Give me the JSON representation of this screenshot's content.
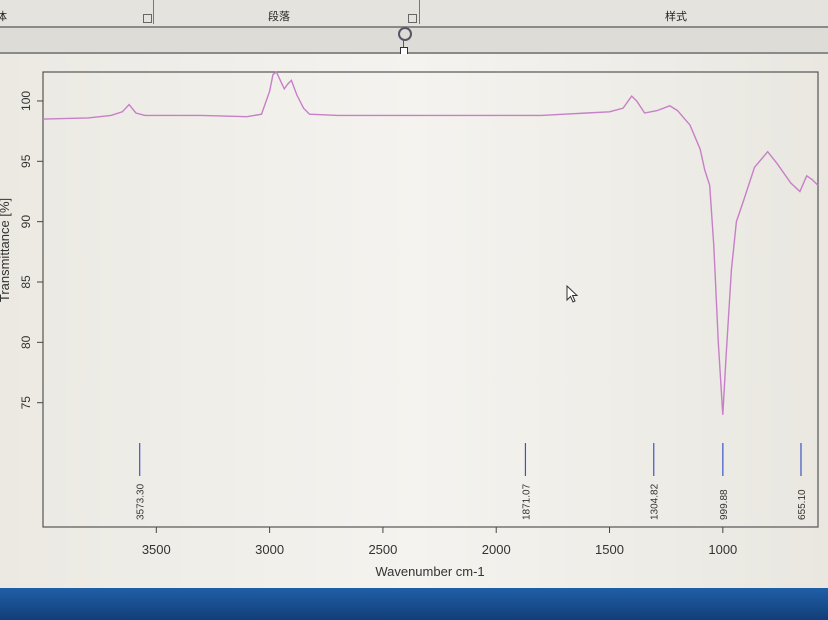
{
  "ribbon": {
    "groups": [
      {
        "label": "体"
      },
      {
        "label": "段落"
      },
      {
        "label": "样式"
      }
    ]
  },
  "chart_data": {
    "type": "line",
    "title": "",
    "xlabel": "Wavenumber cm-1",
    "ylabel": "Transmittance [%]",
    "xlim": [
      4000,
      580
    ],
    "ylim": [
      64.7,
      102.4
    ],
    "x_reversed": true,
    "grid": false,
    "x_ticks": [
      3500,
      3000,
      2500,
      2000,
      1500,
      1000
    ],
    "y_ticks": [
      75,
      80,
      85,
      90,
      95,
      100
    ],
    "line_color": "#c77fc7",
    "marker_color": "#3d55c4",
    "series": [
      {
        "x": [
          4000,
          3800,
          3700,
          3650,
          3620,
          3590,
          3550,
          3300,
          3100,
          3036,
          3000,
          2985,
          2970,
          2950,
          2935,
          2920,
          2904,
          2880,
          2850,
          2824,
          2700,
          2400,
          2000,
          1800,
          1700,
          1600,
          1500,
          1440,
          1402,
          1380,
          1345,
          1290,
          1234,
          1200,
          1145,
          1100,
          1080,
          1058,
          1040,
          1020,
          1000,
          985,
          962,
          940,
          904,
          860,
          802,
          760,
          700,
          660,
          630,
          607,
          580
        ],
        "y": [
          98.5,
          98.6,
          98.8,
          99.1,
          99.7,
          99.0,
          98.8,
          98.8,
          98.7,
          98.9,
          100.8,
          102.2,
          102.4,
          101.6,
          101.0,
          101.4,
          101.7,
          100.5,
          99.4,
          98.9,
          98.8,
          98.8,
          98.8,
          98.8,
          98.9,
          99.0,
          99.1,
          99.4,
          100.4,
          100.0,
          99.0,
          99.2,
          99.6,
          99.2,
          98.0,
          96.0,
          94.3,
          93.0,
          88.0,
          80.0,
          74.0,
          79.0,
          86.0,
          90.0,
          92.0,
          94.5,
          95.8,
          94.8,
          93.2,
          92.5,
          93.8,
          93.5,
          93.0
        ]
      }
    ],
    "peak_markers": [
      {
        "x": 3573.3,
        "label": "3573.30"
      },
      {
        "x": 1871.07,
        "label": "1871.07"
      },
      {
        "x": 1304.82,
        "label": "1304.82"
      },
      {
        "x": 999.88,
        "label": "999.88"
      },
      {
        "x": 655.1,
        "label": "655.10"
      }
    ]
  }
}
